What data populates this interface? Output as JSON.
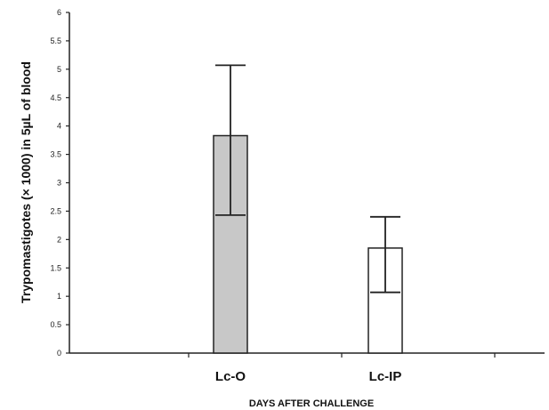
{
  "chart_data": {
    "type": "bar",
    "categories": [
      "Lc-O",
      "Lc-IP"
    ],
    "values": [
      3.83,
      1.85
    ],
    "error_high": [
      5.07,
      2.4
    ],
    "error_low": [
      2.43,
      1.07
    ],
    "ylim": [
      0,
      6
    ],
    "yticks": [
      "0",
      "0.5",
      "1",
      "1.5",
      "2",
      "2.5",
      "3",
      "3.5",
      "4",
      "4.5",
      "5",
      "5.5",
      "6"
    ],
    "xlabel": "DAYS AFTER CHALLENGE",
    "ylabel": "Trypomastigotes (× 1000) in 5µL of blood",
    "bar_colors": [
      "#c8c8c8",
      "#ffffff"
    ],
    "grid": false
  }
}
